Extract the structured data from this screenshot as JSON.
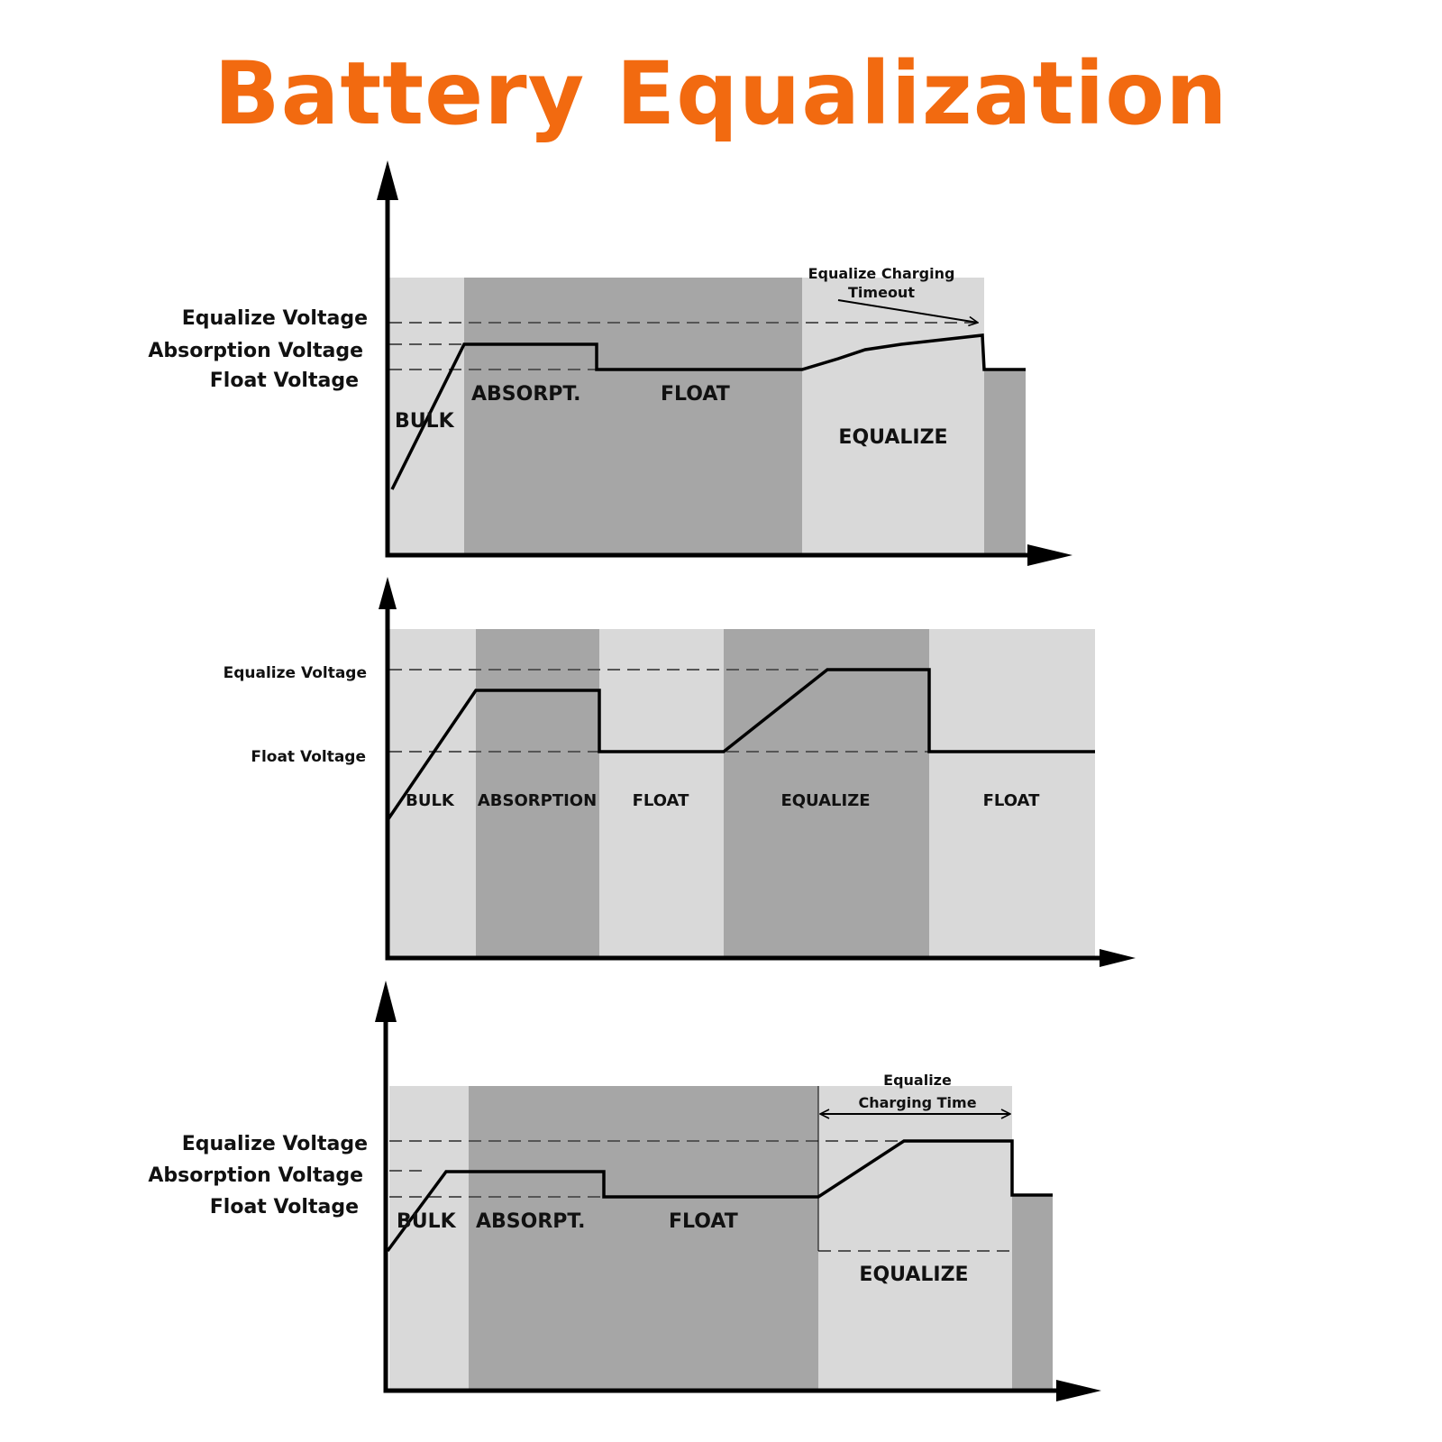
{
  "title": "Battery Equalization",
  "colors": {
    "title": "#f26a10",
    "light_region": "#d9d9d9",
    "dark_region": "#a6a6a6",
    "line": "#000000"
  },
  "panel1": {
    "voltage_labels": [
      "Equalize Voltage",
      "Absorption Voltage",
      "Float Voltage"
    ],
    "stages": [
      "BULK",
      "ABSORPT.",
      "FLOAT",
      "EQUALIZE"
    ],
    "annotation": [
      "Equalize Charging",
      "Timeout"
    ]
  },
  "panel2": {
    "voltage_labels": [
      "Equalize Voltage",
      "Float Voltage"
    ],
    "stages": [
      "BULK",
      "ABSORPTION",
      "FLOAT",
      "EQUALIZE",
      "FLOAT"
    ]
  },
  "panel3": {
    "voltage_labels": [
      "Equalize Voltage",
      "Absorption Voltage",
      "Float Voltage"
    ],
    "stages": [
      "BULK",
      "ABSORPT.",
      "FLOAT",
      "EQUALIZE"
    ],
    "annotation": [
      "Equalize",
      "Charging Time"
    ]
  }
}
